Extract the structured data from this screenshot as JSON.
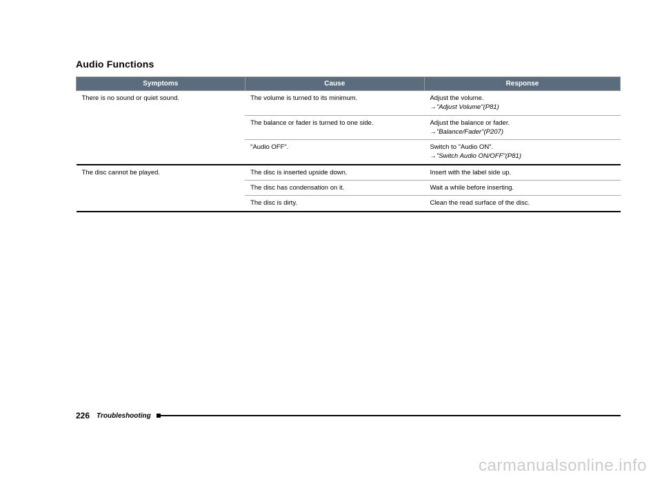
{
  "title": "Audio Functions",
  "headers": {
    "col1": "Symptoms",
    "col2": "Cause",
    "col3": "Response"
  },
  "rows": {
    "g1": {
      "symptom": "There is no sound or quiet sound.",
      "r1": {
        "cause": "The volume is turned to its minimum.",
        "resp_main": "Adjust the volume.",
        "resp_ref": "→\"Adjust Volume\"(P81)"
      },
      "r2": {
        "cause": "The balance or fader is turned to one side.",
        "resp_main": "Adjust the balance or fader.",
        "resp_ref": "→\"Balance/Fader\"(P207)"
      },
      "r3": {
        "cause": "\"Audio OFF\".",
        "resp_main": "Switch to \"Audio ON\".",
        "resp_ref": "→\"Switch Audio ON/OFF\"(P81)"
      }
    },
    "g2": {
      "symptom": "The disc cannot be played.",
      "r1": {
        "cause": "The disc is inserted upside down.",
        "resp_main": "Insert with the label side up."
      },
      "r2": {
        "cause": "The disc has condensation on it.",
        "resp_main": "Wait a while before inserting."
      },
      "r3": {
        "cause": "The disc is dirty.",
        "resp_main": "Clean the read surface of the disc."
      }
    }
  },
  "footer": {
    "page": "226",
    "section": "Troubleshooting"
  },
  "watermark": "carmanualsonline.info"
}
